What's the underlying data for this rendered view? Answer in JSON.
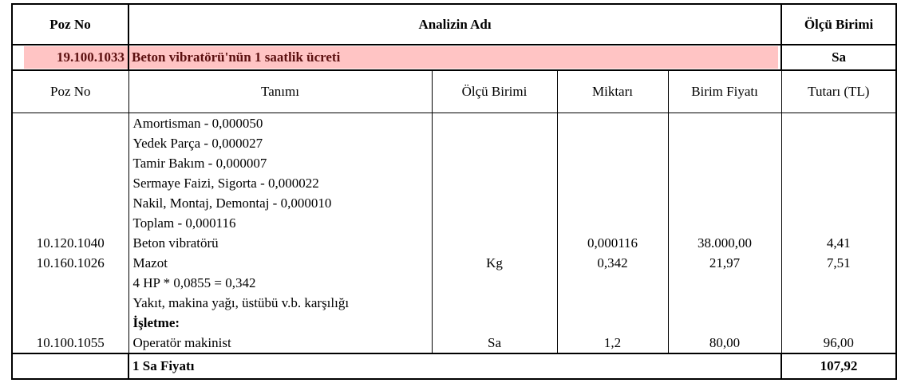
{
  "header": {
    "poz_no": "Poz No",
    "analiz_adi": "Analizin Adı",
    "olcu_birimi": "Ölçü Birimi"
  },
  "analysis": {
    "poz_no": "19.100.1033",
    "name": "Beton vibratörü'nün 1 saatlik ücreti",
    "unit": "Sa",
    "highlight_color": "#ffc4c4"
  },
  "columns": {
    "poz_no": "Poz No",
    "tanimi": "Tanımı",
    "olcu_birimi": "Ölçü Birimi",
    "miktari": "Miktarı",
    "birim_fiyati": "Birim Fiyatı",
    "tutari": "Tutarı (TL)"
  },
  "lines": [
    {
      "poz": "",
      "tanim": "Amortisman - 0,000050",
      "unit": "",
      "qty": "",
      "price": "",
      "total": ""
    },
    {
      "poz": "",
      "tanim": "Yedek Parça - 0,000027",
      "unit": "",
      "qty": "",
      "price": "",
      "total": ""
    },
    {
      "poz": "",
      "tanim": "Tamir Bakım - 0,000007",
      "unit": "",
      "qty": "",
      "price": "",
      "total": ""
    },
    {
      "poz": "",
      "tanim": "Sermaye Faizi, Sigorta - 0,000022",
      "unit": "",
      "qty": "",
      "price": "",
      "total": ""
    },
    {
      "poz": "",
      "tanim": "Nakil, Montaj, Demontaj - 0,000010",
      "unit": "",
      "qty": "",
      "price": "",
      "total": ""
    },
    {
      "poz": "",
      "tanim": "Toplam - 0,000116",
      "unit": "",
      "qty": "",
      "price": "",
      "total": ""
    },
    {
      "poz": "10.120.1040",
      "tanim": "Beton vibratörü",
      "unit": "",
      "qty": "0,000116",
      "price": "38.000,00",
      "total": "4,41"
    },
    {
      "poz": "10.160.1026",
      "tanim": "Mazot",
      "unit": "Kg",
      "qty": "0,342",
      "price": "21,97",
      "total": "7,51"
    },
    {
      "poz": "",
      "tanim": "4 HP * 0,0855 = 0,342",
      "unit": "",
      "qty": "",
      "price": "",
      "total": ""
    },
    {
      "poz": "",
      "tanim": "Yakıt, makina yağı, üstübü v.b. karşılığı",
      "unit": "",
      "qty": "",
      "price": "",
      "total": ""
    },
    {
      "poz": "",
      "tanim": "İşletme:",
      "bold": true,
      "unit": "",
      "qty": "",
      "price": "",
      "total": ""
    },
    {
      "poz": "10.100.1055",
      "tanim": "Operatör makinist",
      "unit": "Sa",
      "qty": "1,2",
      "price": "80,00",
      "total": "96,00"
    }
  ],
  "footer": {
    "label": "1 Sa Fiyatı",
    "total": "107,92"
  }
}
